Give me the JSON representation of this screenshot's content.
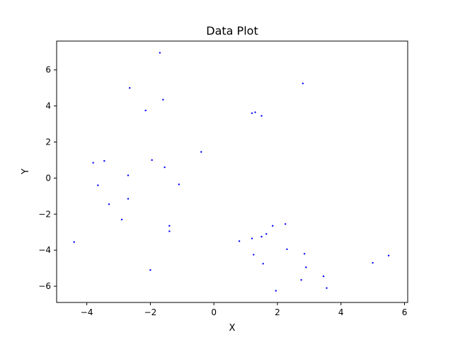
{
  "chart_data": {
    "type": "scatter",
    "title": "Data Plot",
    "xlabel": "X",
    "ylabel": "Y",
    "xlim": [
      -4.95,
      6.1
    ],
    "ylim": [
      -6.9,
      7.6
    ],
    "xticks": [
      -4,
      -2,
      0,
      2,
      4,
      6
    ],
    "yticks": [
      -6,
      -4,
      -2,
      0,
      2,
      4,
      6
    ],
    "grid": false,
    "legend": "none",
    "marker_color": "#0000ff",
    "points": [
      {
        "x": -4.4,
        "y": -3.55
      },
      {
        "x": -3.8,
        "y": 0.85
      },
      {
        "x": -3.65,
        "y": -0.4
      },
      {
        "x": -3.45,
        "y": 0.95
      },
      {
        "x": -3.3,
        "y": -1.45
      },
      {
        "x": -2.9,
        "y": -2.3
      },
      {
        "x": -2.7,
        "y": 0.15
      },
      {
        "x": -2.7,
        "y": -1.15
      },
      {
        "x": -2.65,
        "y": 5.0
      },
      {
        "x": -2.15,
        "y": 3.75
      },
      {
        "x": -2.0,
        "y": -5.1
      },
      {
        "x": -1.95,
        "y": 1.0
      },
      {
        "x": -1.7,
        "y": 6.95
      },
      {
        "x": -1.6,
        "y": 4.35
      },
      {
        "x": -1.55,
        "y": 0.6
      },
      {
        "x": -1.4,
        "y": -2.65
      },
      {
        "x": -1.4,
        "y": -2.95
      },
      {
        "x": -1.1,
        "y": -0.35
      },
      {
        "x": -0.4,
        "y": 1.45
      },
      {
        "x": 0.8,
        "y": -3.5
      },
      {
        "x": 1.2,
        "y": 3.6
      },
      {
        "x": 1.2,
        "y": -3.35
      },
      {
        "x": 1.25,
        "y": -4.25
      },
      {
        "x": 1.3,
        "y": 3.65
      },
      {
        "x": 1.5,
        "y": 3.45
      },
      {
        "x": 1.5,
        "y": -3.25
      },
      {
        "x": 1.55,
        "y": -4.75
      },
      {
        "x": 1.65,
        "y": -3.1
      },
      {
        "x": 1.85,
        "y": -2.65
      },
      {
        "x": 1.95,
        "y": -6.25
      },
      {
        "x": 2.25,
        "y": -2.55
      },
      {
        "x": 2.3,
        "y": -3.95
      },
      {
        "x": 2.75,
        "y": -5.65
      },
      {
        "x": 2.8,
        "y": 5.25
      },
      {
        "x": 2.85,
        "y": -4.2
      },
      {
        "x": 2.9,
        "y": -4.95
      },
      {
        "x": 3.45,
        "y": -5.45
      },
      {
        "x": 3.55,
        "y": -6.1
      },
      {
        "x": 5.0,
        "y": -4.7
      },
      {
        "x": 5.5,
        "y": -4.3
      }
    ]
  }
}
